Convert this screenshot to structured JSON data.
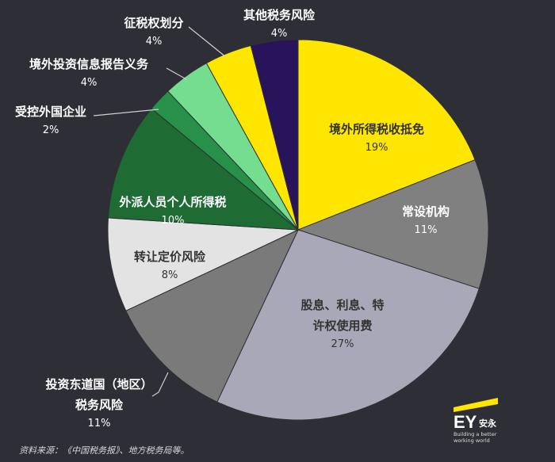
{
  "chart_data": {
    "type": "pie",
    "title": "",
    "start_angle_deg": 0,
    "slices": [
      {
        "label": "境外所得税收抵免",
        "value": 19,
        "pct_label": "19%",
        "color": "#ffe600",
        "text_color": "#333333"
      },
      {
        "label": "常设机构",
        "value": 11,
        "pct_label": "11%",
        "color": "#808080",
        "text_color": "#ffffff"
      },
      {
        "label_lines": [
          "股息、利息、特",
          "许权使用费"
        ],
        "label": "股息、利息、特许权使用费",
        "value": 27,
        "pct_label": "27%",
        "color": "#a9a8b8",
        "text_color": "#333333"
      },
      {
        "label_lines": [
          "投资东道国（地区）",
          "税务风险"
        ],
        "label": "投资东道国（地区）税务风险",
        "value": 11,
        "pct_label": "11%",
        "color": "#7a7a7a",
        "text_color": "#ffffff"
      },
      {
        "label": "转让定价风险",
        "value": 8,
        "pct_label": "8%",
        "color": "#e3e3e3",
        "text_color": "#333333"
      },
      {
        "label": "外派人员个人所得税",
        "value": 10,
        "pct_label": "10%",
        "color": "#1e6b33",
        "text_color": "#ffffff"
      },
      {
        "label": "受控外国企业",
        "value": 2,
        "pct_label": "2%",
        "color": "#27914a",
        "text_color": "#ffffff"
      },
      {
        "label": "境外投资信息报告义务",
        "value": 4,
        "pct_label": "4%",
        "color": "#74dd8f",
        "text_color": "#ffffff"
      },
      {
        "label": "征税权划分",
        "value": 4,
        "pct_label": "4%",
        "color": "#ffe600",
        "text_color": "#ffffff"
      },
      {
        "label": "其他税务风险",
        "value": 4,
        "pct_label": "4%",
        "color": "#28145a",
        "text_color": "#ffffff"
      }
    ]
  },
  "source_note": "资料来源：《中国税务报》、地方税务局等。",
  "logo": {
    "mark": "EY",
    "cn": "安永",
    "tagline_lines": [
      "Building a better",
      "working world"
    ],
    "accent_color": "#ffe600"
  }
}
